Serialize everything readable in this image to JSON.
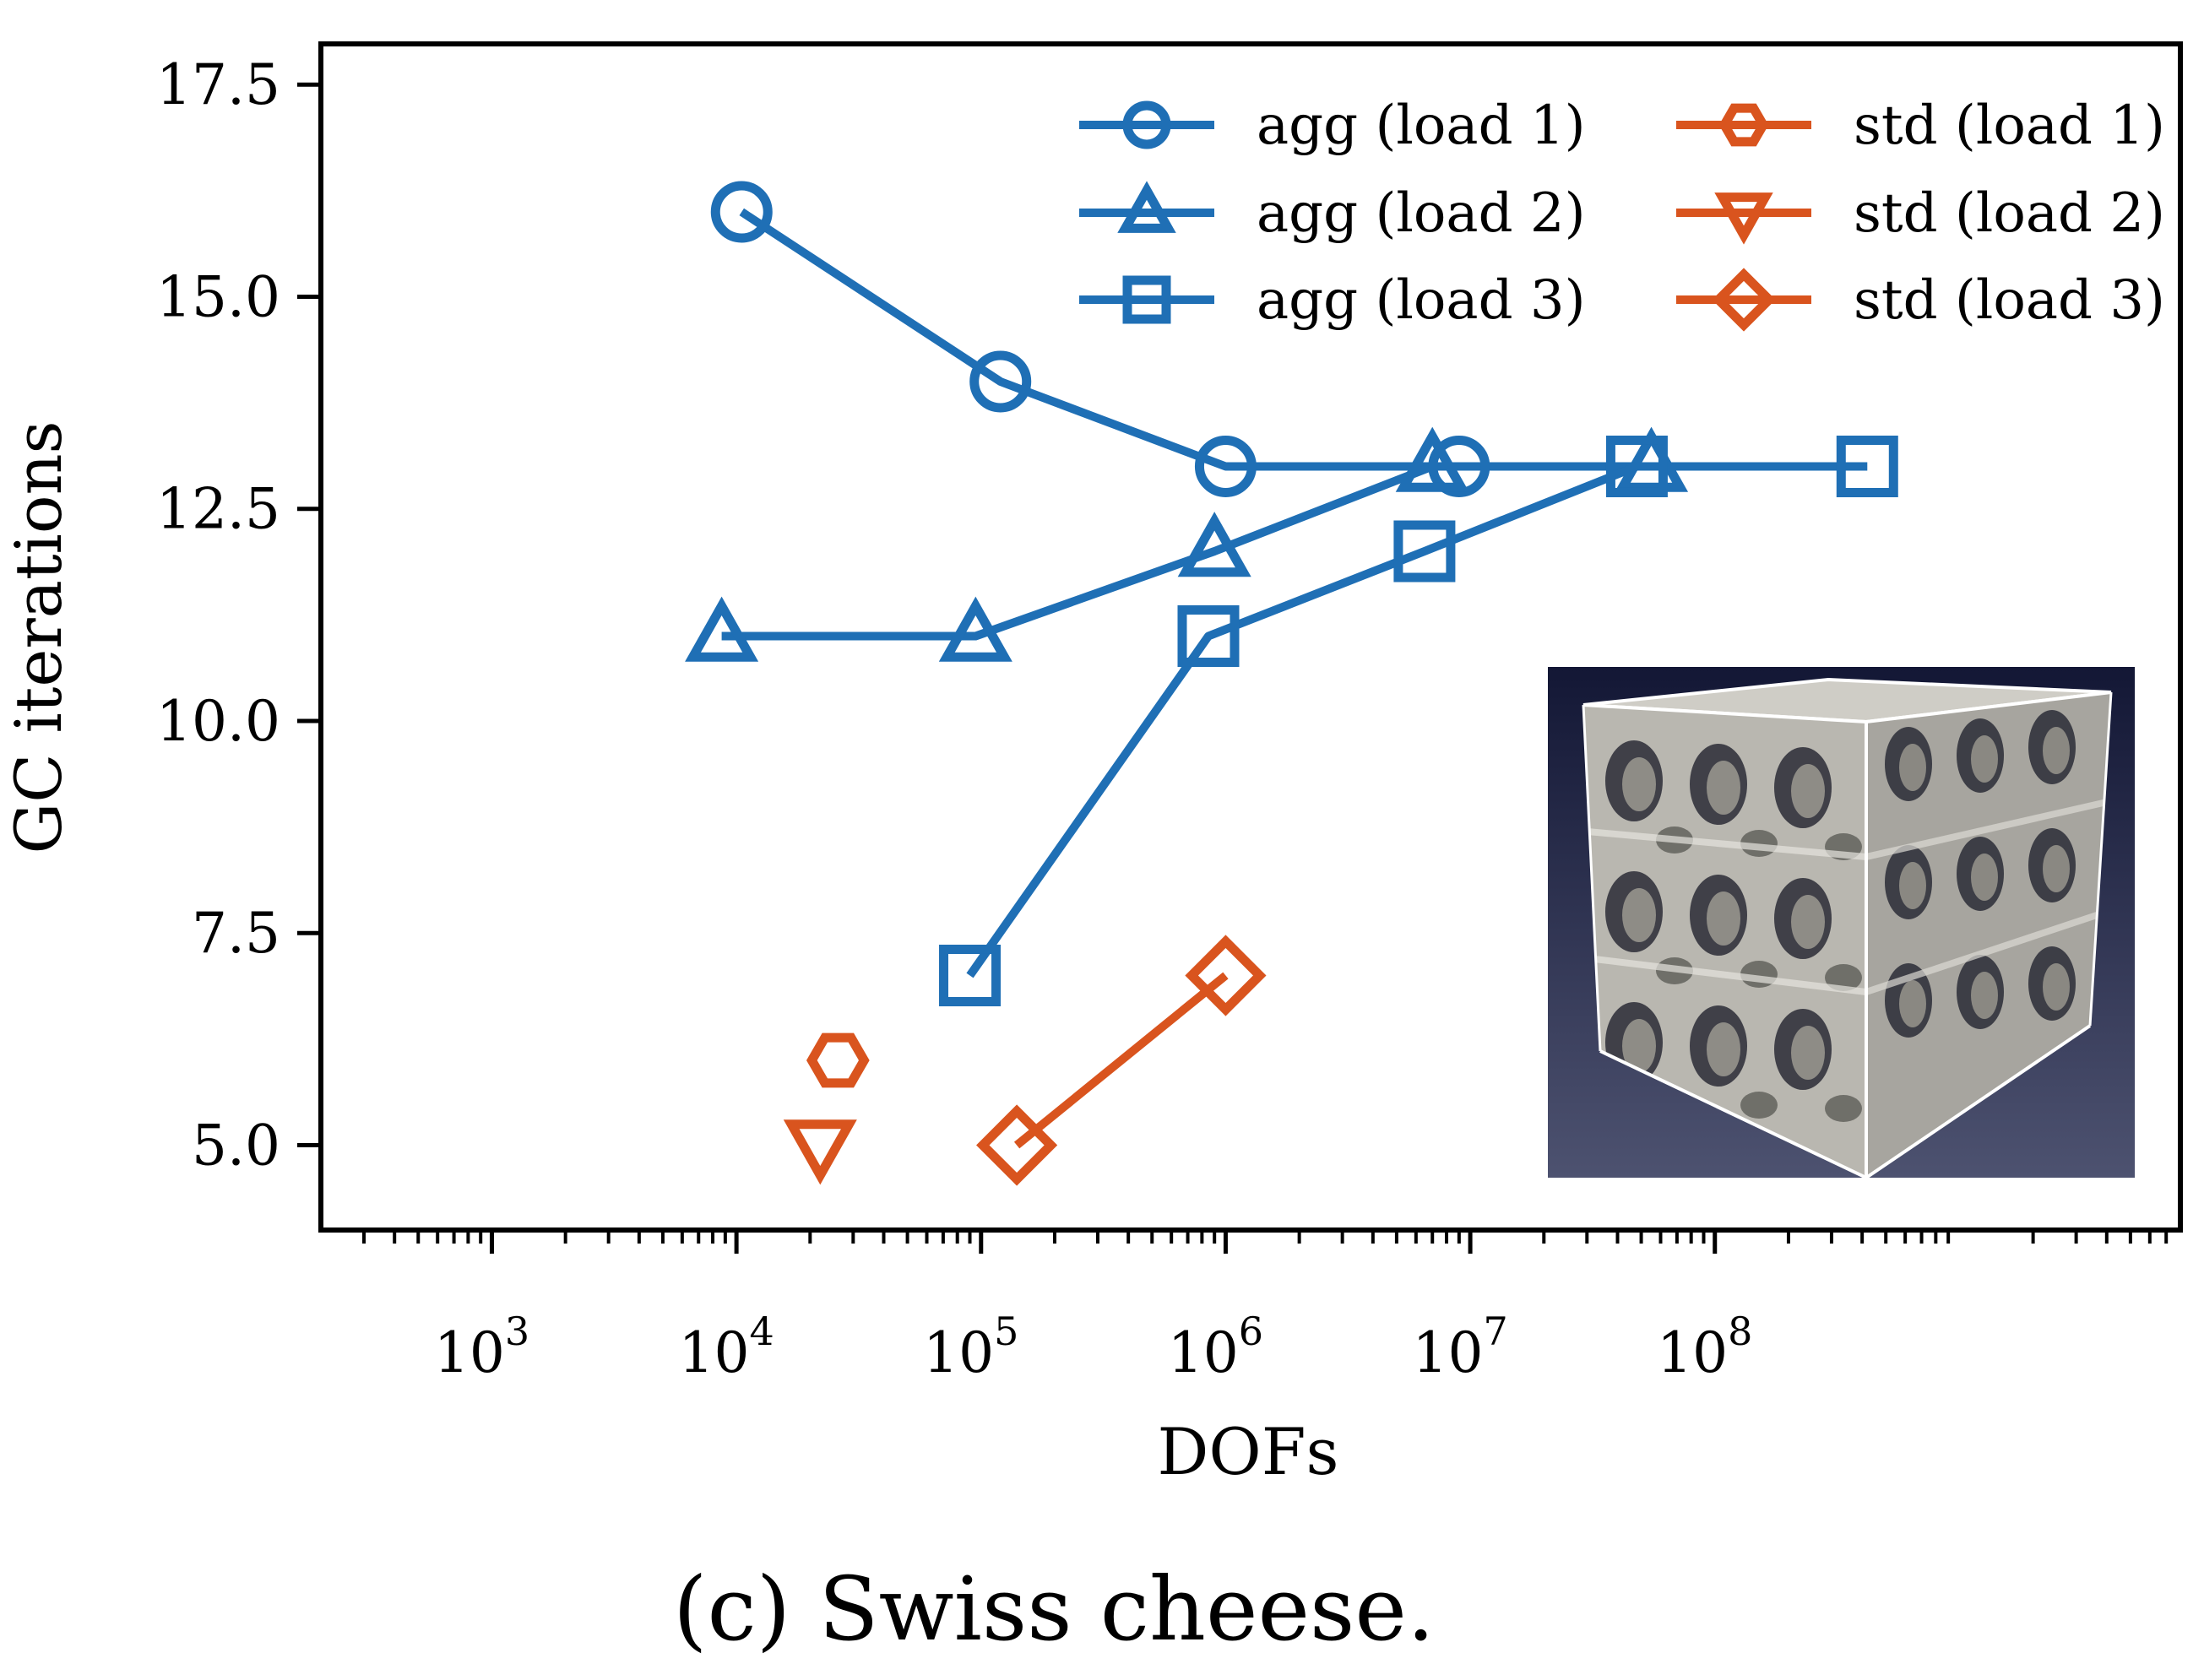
{
  "caption": "(c) Swiss cheese.",
  "chart_data": {
    "type": "line",
    "title": "",
    "xlabel": "DOFs",
    "ylabel": "GC iterations",
    "xscale": "log",
    "xlim": [
      200,
      8000000000
    ],
    "ylim": [
      4.0,
      17.98
    ],
    "xticks": [
      {
        "value": 1000,
        "base": "10",
        "exp": "3"
      },
      {
        "value": 10000,
        "base": "10",
        "exp": "4"
      },
      {
        "value": 100000,
        "base": "10",
        "exp": "5"
      },
      {
        "value": 1000000,
        "base": "10",
        "exp": "6"
      },
      {
        "value": 10000000,
        "base": "10",
        "exp": "7"
      },
      {
        "value": 100000000,
        "base": "10",
        "exp": "8"
      }
    ],
    "yticks": [
      {
        "value": 5.0,
        "label": "5.0"
      },
      {
        "value": 7.5,
        "label": "7.5"
      },
      {
        "value": 10.0,
        "label": "10.0"
      },
      {
        "value": 12.5,
        "label": "12.5"
      },
      {
        "value": 15.0,
        "label": "15.0"
      },
      {
        "value": 17.5,
        "label": "17.5"
      }
    ],
    "grid": false,
    "legend_position": "top-right",
    "series": [
      {
        "name": "agg (load 1)",
        "marker": "circle",
        "color": "#1f6fb5",
        "x": [
          10500,
          120000,
          1000000,
          9000000
        ],
        "y": [
          16,
          14,
          13,
          13
        ]
      },
      {
        "name": "agg (load 2)",
        "marker": "triangle-up",
        "color": "#1f6fb5",
        "x": [
          8700,
          95000,
          900000,
          7000000,
          55000000
        ],
        "y": [
          11,
          11,
          12,
          13,
          13
        ]
      },
      {
        "name": "agg (load 3)",
        "marker": "square",
        "color": "#1f6fb5",
        "x": [
          90000,
          850000,
          6500000,
          48000000,
          420000000
        ],
        "y": [
          7,
          11,
          12,
          13,
          13
        ]
      },
      {
        "name": "std (load 1)",
        "marker": "hexagon",
        "color": "#d9541e",
        "x": [
          26000
        ],
        "y": [
          6
        ]
      },
      {
        "name": "std (load 2)",
        "marker": "triangle-down",
        "color": "#d9541e",
        "x": [
          22000
        ],
        "y": [
          5
        ]
      },
      {
        "name": "std (load 3)",
        "marker": "diamond",
        "color": "#d9541e",
        "x": [
          140000,
          1000000
        ],
        "y": [
          5,
          7
        ]
      }
    ]
  }
}
